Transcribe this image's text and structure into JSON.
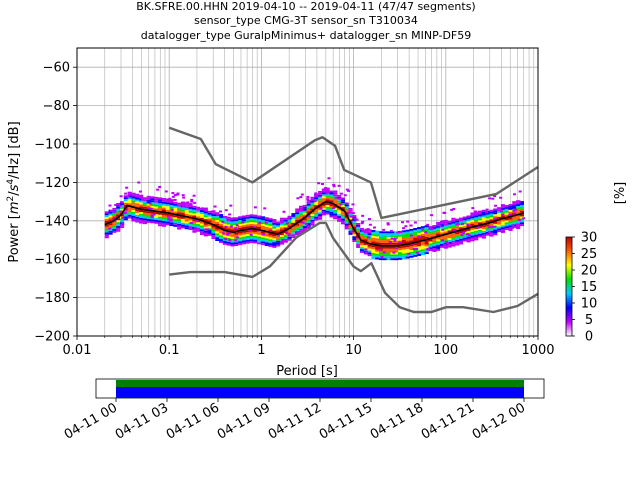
{
  "title_lines": [
    "BK.SFRE.00.HHN   2019-04-10 -- 2019-04-11  (47/47 segments)",
    "sensor_type CMG-3T sensor_sn T310034",
    "datalogger_type GuralpMinimus+ datalogger_sn MINP-DF59"
  ],
  "chart_data": {
    "type": "heatmap",
    "xlabel": "Period [s]",
    "ylabel": "Power [m²/s⁴/Hz] [dB]",
    "ylabel_parts": {
      "pre": "Power [",
      "m": "m",
      "sup2": "2",
      "slash1": "/",
      "s": "s",
      "sup4": "4",
      "rest": "/Hz] [dB]"
    },
    "xscale": "log",
    "xlim": [
      0.01,
      1000
    ],
    "ylim": [
      -200,
      -50
    ],
    "grid": true,
    "x_ticks": [
      0.01,
      0.1,
      1,
      10,
      100,
      1000
    ],
    "x_tick_labels": [
      "0.01",
      "0.1",
      "1",
      "10",
      "100",
      "1000"
    ],
    "y_ticks": [
      -200,
      -180,
      -160,
      -140,
      -120,
      -100,
      -80,
      -60
    ],
    "y_tick_labels": [
      "−200",
      "−180",
      "−160",
      "−140",
      "−120",
      "−100",
      "−80",
      "−60"
    ],
    "colorbar": {
      "label": "[%]",
      "range": [
        0,
        30
      ],
      "ticks": [
        0,
        5,
        10,
        15,
        20,
        25,
        30
      ],
      "tick_labels": [
        "0",
        "5",
        "10",
        "15",
        "20",
        "25",
        "30"
      ],
      "colors": [
        "#ffffff",
        "#c000ff",
        "#0000ff",
        "#00c8ff",
        "#00e000",
        "#ffff00",
        "#ff6000",
        "#c00000"
      ]
    },
    "mode_curve": {
      "period": [
        0.02,
        0.025,
        0.03,
        0.035,
        0.05,
        0.1,
        0.2,
        0.3,
        0.4,
        0.5,
        0.6,
        0.8,
        1,
        1.5,
        2,
        3,
        4,
        5,
        6,
        8,
        10,
        12,
        15,
        20,
        30,
        40,
        60,
        100,
        200,
        300,
        400,
        700
      ],
      "power": [
        -142,
        -140,
        -137,
        -132,
        -134,
        -136,
        -139,
        -142,
        -145,
        -146,
        -145,
        -144,
        -145,
        -147,
        -144,
        -138,
        -133,
        -130,
        -131,
        -135,
        -144,
        -150,
        -152,
        -153,
        -153,
        -152,
        -150,
        -147,
        -143,
        -141,
        -139,
        -136
      ]
    },
    "nhnm": {
      "period": [
        0.1,
        0.22,
        0.32,
        0.8,
        3.8,
        4.6,
        6.3,
        7.9,
        15.4,
        20,
        354.8,
        1000
      ],
      "power": [
        -91.5,
        -97.4,
        -110.5,
        -120,
        -98,
        -96.5,
        -101,
        -113.5,
        -120,
        -138.5,
        -126,
        -112
      ]
    },
    "nlnm": {
      "period": [
        0.1,
        0.17,
        0.4,
        0.8,
        1.24,
        2.4,
        4.3,
        5,
        6,
        10,
        12,
        15.6,
        21.9,
        31.6,
        45,
        70,
        101,
        154,
        328,
        600,
        1000
      ],
      "power": [
        -168,
        -166.7,
        -166.7,
        -169.2,
        -163.7,
        -148.6,
        -141.1,
        -141.1,
        -149,
        -163.8,
        -166.2,
        -162.1,
        -177.5,
        -185,
        -187.5,
        -187.5,
        -185,
        -185,
        -187.5,
        -184.4,
        -178
      ]
    }
  },
  "timeline": {
    "tick_labels": [
      "04-11 00",
      "04-11 03",
      "04-11 06",
      "04-11 09",
      "04-11 12",
      "04-11 15",
      "04-11 18",
      "04-11 21",
      "04-12 00"
    ],
    "coverage_color": "#0000ff",
    "gap_color": "#008000"
  }
}
